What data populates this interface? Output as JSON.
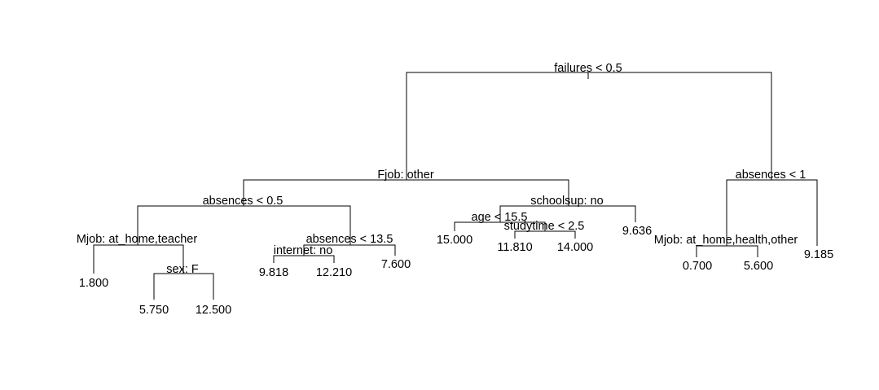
{
  "tree": {
    "splits": {
      "root": "failures < 0.5",
      "fjob": "Fjob: other",
      "absences_r": "absences < 1",
      "absences_05": "absences < 0.5",
      "schoolsup": "schoolsup: no",
      "mjob_l": "Mjob: at_home,teacher",
      "absences_135": "absences < 13.5",
      "age": "age < 15.5",
      "studytime": "studytime < 2.5",
      "mjob_r": "Mjob: at_home,health,other",
      "sex": "sex: F",
      "internet": "internet: no"
    },
    "leaves": {
      "leaf_1800": "1.800",
      "leaf_5750": "5.750",
      "leaf_12500": "12.500",
      "leaf_9818": "9.818",
      "leaf_12210": "12.210",
      "leaf_7600": "7.600",
      "leaf_15000": "15.000",
      "leaf_11810": "11.810",
      "leaf_14000": "14.000",
      "leaf_9636": "9.636",
      "leaf_0700": "0.700",
      "leaf_5600": "5.600",
      "leaf_9185": "9.185"
    }
  }
}
